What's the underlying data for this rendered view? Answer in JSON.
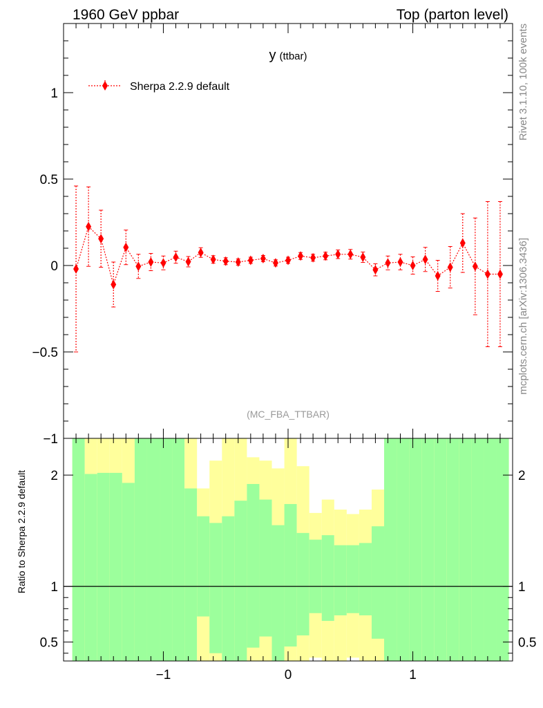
{
  "header": {
    "left_title": "1960 GeV ppbar",
    "right_title": "Top (parton level)"
  },
  "side_labels": {
    "rivet": "Rivet 3.1.10,  100k events",
    "mcplots": "mcplots.cern.ch [arXiv:1306.3436]"
  },
  "colors": {
    "series": "#ff0000",
    "band_inner": "#9cff9c",
    "band_outer": "#ffff9c",
    "axis": "#000000",
    "grey_text": "#888888"
  },
  "chart_data": [
    {
      "type": "line",
      "title": "y",
      "title_sub": "(ttbar)",
      "analysis_label": "(MC_FBA_TTBAR)",
      "xlim": [
        -1.8,
        1.8
      ],
      "ylim": [
        -1.0,
        1.4
      ],
      "yticks": [
        -1,
        -0.5,
        0,
        0.5,
        1
      ],
      "ytick_labels": [
        "−1",
        "−0.5",
        "0",
        "0.5",
        "1"
      ],
      "xticks": [
        -1,
        0,
        1
      ],
      "xtick_labels": [
        "−1",
        "0",
        "1"
      ],
      "series": [
        {
          "name": "Sherpa 2.2.9 default",
          "x": [
            -1.7,
            -1.6,
            -1.5,
            -1.4,
            -1.3,
            -1.2,
            -1.1,
            -1.0,
            -0.9,
            -0.8,
            -0.7,
            -0.6,
            -0.5,
            -0.4,
            -0.3,
            -0.2,
            -0.1,
            0.0,
            0.1,
            0.2,
            0.3,
            0.4,
            0.5,
            0.6,
            0.7,
            0.8,
            0.9,
            1.0,
            1.1,
            1.2,
            1.3,
            1.4,
            1.5,
            1.6,
            1.7
          ],
          "y": [
            -0.02,
            0.225,
            0.155,
            -0.11,
            0.105,
            -0.005,
            0.02,
            0.015,
            0.048,
            0.022,
            0.075,
            0.035,
            0.025,
            0.02,
            0.03,
            0.04,
            0.015,
            0.03,
            0.055,
            0.045,
            0.055,
            0.065,
            0.065,
            0.048,
            -0.025,
            0.015,
            0.02,
            0.0,
            0.035,
            -0.06,
            -0.01,
            0.13,
            -0.005,
            -0.05,
            -0.05
          ],
          "err": [
            0.48,
            0.23,
            0.165,
            0.13,
            0.1,
            0.07,
            0.05,
            0.04,
            0.035,
            0.03,
            0.028,
            0.022,
            0.02,
            0.018,
            0.018,
            0.018,
            0.018,
            0.018,
            0.02,
            0.02,
            0.022,
            0.025,
            0.028,
            0.03,
            0.035,
            0.04,
            0.045,
            0.05,
            0.07,
            0.09,
            0.12,
            0.17,
            0.28,
            0.42,
            0.42
          ]
        }
      ]
    },
    {
      "type": "area",
      "ylabel": "Ratio to Sherpa 2.2.9 default",
      "xlim": [
        -1.8,
        1.8
      ],
      "ylim": [
        0.33,
        2.33
      ],
      "yticks": [
        0.5,
        1,
        2
      ],
      "ytick_labels": [
        "0.5",
        "1",
        "2"
      ],
      "reference_line": 1.0,
      "bin_edges": [
        -1.73,
        -1.63,
        -1.53,
        -1.43,
        -1.33,
        -1.23,
        -1.13,
        -1.03,
        -0.93,
        -0.83,
        -0.73,
        -0.63,
        -0.53,
        -0.43,
        -0.33,
        -0.23,
        -0.13,
        -0.03,
        0.07,
        0.17,
        0.27,
        0.37,
        0.47,
        0.57,
        0.67,
        0.77,
        0.87,
        0.97,
        1.07,
        1.17,
        1.27,
        1.37,
        1.47,
        1.57,
        1.67
      ],
      "inner_low": [
        0.33,
        0.33,
        0.33,
        0.33,
        0.33,
        0.33,
        0.33,
        0.33,
        0.33,
        0.33,
        0.73,
        0.4,
        0.33,
        0.33,
        0.45,
        0.55,
        0.33,
        0.46,
        0.56,
        0.76,
        0.69,
        0.74,
        0.76,
        0.74,
        0.53,
        0.33,
        0.33,
        0.33,
        0.33,
        0.33,
        0.33,
        0.33,
        0.33,
        0.33,
        0.33
      ],
      "inner_high": [
        2.33,
        2.01,
        2.02,
        2.02,
        1.93,
        2.33,
        2.33,
        2.33,
        2.33,
        1.88,
        1.63,
        1.57,
        1.63,
        1.77,
        1.92,
        1.78,
        1.55,
        1.74,
        1.48,
        1.42,
        1.46,
        1.37,
        1.37,
        1.39,
        1.54,
        2.33,
        2.33,
        2.33,
        2.33,
        2.33,
        2.33,
        2.33,
        2.33,
        2.33,
        2.33
      ],
      "outer_low": [
        0.33,
        0.33,
        0.33,
        0.33,
        0.33,
        0.33,
        0.33,
        0.33,
        0.33,
        0.33,
        0.33,
        0.33,
        0.33,
        0.33,
        0.33,
        0.33,
        0.33,
        0.33,
        0.33,
        0.36,
        0.33,
        0.33,
        0.36,
        0.33,
        0.33,
        0.33,
        0.33,
        0.33,
        0.33,
        0.33,
        0.33,
        0.33,
        0.33,
        0.33,
        0.33
      ],
      "outer_high": [
        2.33,
        2.33,
        2.33,
        2.33,
        2.33,
        2.33,
        2.33,
        2.33,
        2.33,
        2.33,
        1.88,
        2.13,
        2.33,
        2.33,
        2.16,
        2.13,
        2.06,
        2.33,
        2.08,
        1.66,
        1.78,
        1.69,
        1.65,
        1.69,
        1.87,
        2.33,
        2.33,
        2.33,
        2.33,
        2.33,
        2.33,
        2.33,
        2.33,
        2.33,
        2.33
      ]
    }
  ]
}
